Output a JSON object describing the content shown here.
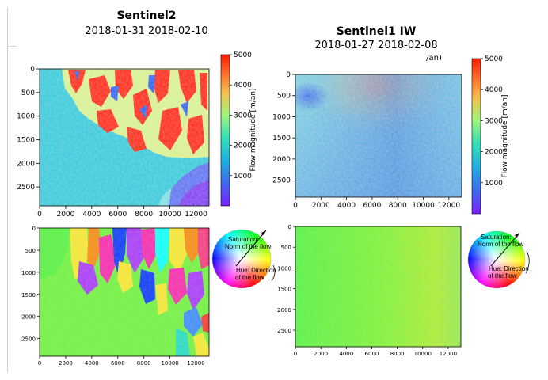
{
  "titles": {
    "left_bold": "Sentinel2",
    "left_dates": "2018-01-31 2018-02-10",
    "right_bold": "Sentinel1 IW",
    "right_dates": "2018-01-27 2018-02-08",
    "right_fragment": "/an)"
  },
  "colorbar": {
    "title": "Flow magnitude [m/an]",
    "left_ticks": [
      "5000",
      "4000",
      "3000",
      "2000",
      "1000"
    ],
    "right_ticks": [
      "5000",
      "4000",
      "3000",
      "2000",
      "1000"
    ]
  },
  "wheel": {
    "saturation": "Saturation:",
    "norm": "Norm of the flow",
    "hue": "Hue: Direction",
    "of_flow": "of the flow"
  },
  "chart_data": [
    {
      "type": "heatmap",
      "title": "Sentinel2 2018-01-31 2018-02-10",
      "colorbar_label": "Flow magnitude [m/an]",
      "colorbar_range": [
        0,
        5000
      ],
      "colormap": "rainbow",
      "xlim": [
        0,
        13000
      ],
      "ylim": [
        2900,
        0
      ],
      "x_ticks": [
        "0",
        "2000",
        "4000",
        "6000",
        "8000",
        "10000",
        "12000"
      ],
      "y_ticks": [
        "0",
        "500",
        "1000",
        "1500",
        "2000",
        "2500"
      ]
    },
    {
      "type": "heatmap",
      "title": "Sentinel1 IW 2018-01-27 2018-02-08",
      "colorbar_label": "Flow magnitude [m/an]",
      "colorbar_range": [
        0,
        5000
      ],
      "colormap": "rainbow",
      "xlim": [
        0,
        13000
      ],
      "ylim": [
        2900,
        0
      ],
      "x_ticks": [
        "0",
        "2000",
        "4000",
        "6000",
        "8000",
        "10000",
        "12000"
      ],
      "y_ticks": [
        "0",
        "500",
        "1000",
        "1500",
        "2000",
        "2500"
      ]
    },
    {
      "type": "heatmap",
      "title": "",
      "colormap": "hsv flow direction",
      "xlim": [
        0,
        13000
      ],
      "ylim": [
        2900,
        0
      ],
      "x_ticks": [
        "0",
        "2000",
        "4000",
        "6000",
        "8000",
        "10000",
        "12000"
      ],
      "y_ticks": [
        "0",
        "500",
        "1000",
        "1500",
        "2000",
        "2500"
      ]
    },
    {
      "type": "heatmap",
      "title": "",
      "colormap": "hsv flow direction",
      "xlim": [
        0,
        13000
      ],
      "ylim": [
        2900,
        0
      ],
      "x_ticks": [
        "0",
        "2000",
        "4000",
        "6000",
        "8000",
        "10000",
        "12000"
      ],
      "y_ticks": [
        "0",
        "500",
        "1000",
        "1500",
        "2000",
        "2500"
      ]
    }
  ]
}
